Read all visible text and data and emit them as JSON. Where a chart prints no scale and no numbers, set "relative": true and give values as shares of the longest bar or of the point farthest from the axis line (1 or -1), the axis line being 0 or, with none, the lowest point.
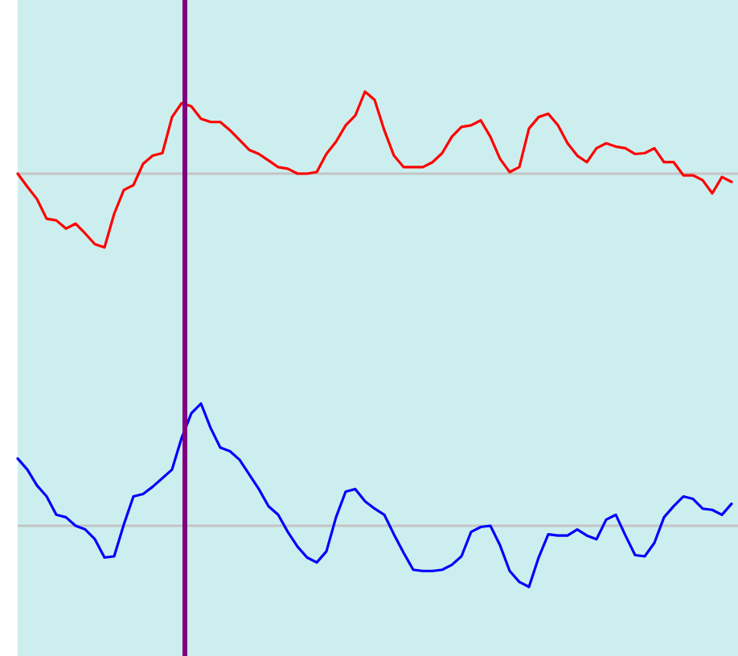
{
  "chart_data": [
    {
      "type": "line",
      "relative": true,
      "categories": [
        null,
        null,
        null,
        null,
        null,
        null,
        null,
        null,
        null,
        null,
        null,
        null,
        null,
        null,
        null,
        null,
        null,
        null,
        null,
        null,
        null,
        null,
        null,
        null,
        null,
        null,
        null,
        null,
        null,
        null,
        null,
        null,
        null,
        null,
        null,
        null,
        null,
        null,
        null,
        null,
        null,
        null,
        null,
        null,
        null,
        null,
        null,
        null,
        null,
        null,
        null,
        null,
        null,
        null,
        null,
        null,
        null,
        null,
        null,
        null,
        null,
        null,
        null,
        null,
        null,
        null,
        null,
        null,
        null,
        null,
        null,
        null,
        null,
        null,
        null
      ],
      "series": [
        {
          "color": "#ff0000",
          "values": [
            0,
            -0.16,
            -0.31,
            -0.55,
            -0.57,
            -0.67,
            -0.61,
            -0.73,
            -0.86,
            -0.9,
            -0.49,
            -0.2,
            -0.14,
            0.12,
            0.22,
            0.25,
            0.69,
            0.86,
            0.82,
            0.67,
            0.63,
            0.63,
            0.53,
            0.41,
            0.29,
            0.24,
            0.16,
            0.08,
            0.06,
            0,
            0,
            0.02,
            0.24,
            0.39,
            0.59,
            0.71,
            1,
            0.9,
            0.53,
            0.22,
            0.08,
            0.08,
            0.08,
            0.14,
            0.25,
            0.45,
            0.57,
            0.59,
            0.65,
            0.45,
            0.18,
            0.02,
            0.08,
            0.55,
            0.69,
            0.73,
            0.59,
            0.37,
            0.22,
            0.14,
            0.31,
            0.37,
            0.33,
            0.31,
            0.24,
            0.25,
            0.31,
            0.14,
            0.14,
            -0.02,
            -0.02,
            -0.08,
            -0.24,
            -0.04,
            -0.1
          ]
        }
      ]
    },
    {
      "type": "line",
      "relative": true,
      "categories": [
        null,
        null,
        null,
        null,
        null,
        null,
        null,
        null,
        null,
        null,
        null,
        null,
        null,
        null,
        null,
        null,
        null,
        null,
        null,
        null,
        null,
        null,
        null,
        null,
        null,
        null,
        null,
        null,
        null,
        null,
        null,
        null,
        null,
        null,
        null,
        null,
        null,
        null,
        null,
        null,
        null,
        null,
        null,
        null,
        null,
        null,
        null,
        null,
        null,
        null,
        null,
        null,
        null,
        null,
        null,
        null,
        null,
        null,
        null,
        null,
        null,
        null,
        null,
        null,
        null,
        null,
        null,
        null,
        null,
        null,
        null,
        null,
        null,
        null,
        null
      ],
      "series": [
        {
          "color": "#0000ff",
          "values": [
            0.55,
            0.46,
            0.33,
            0.24,
            0.09,
            0.07,
            0,
            -0.03,
            -0.11,
            -0.26,
            -0.25,
            0.01,
            0.24,
            0.26,
            0.32,
            0.39,
            0.46,
            0.72,
            0.92,
            1,
            0.8,
            0.64,
            0.61,
            0.54,
            0.42,
            0.3,
            0.16,
            0.09,
            -0.05,
            -0.17,
            -0.26,
            -0.3,
            -0.21,
            0.07,
            0.28,
            0.3,
            0.2,
            0.14,
            0.09,
            -0.07,
            -0.22,
            -0.36,
            -0.37,
            -0.37,
            -0.36,
            -0.32,
            -0.25,
            -0.05,
            -0.01,
            0,
            -0.16,
            -0.37,
            -0.46,
            -0.5,
            -0.26,
            -0.07,
            -0.08,
            -0.08,
            -0.03,
            -0.08,
            -0.11,
            0.05,
            0.09,
            -0.08,
            -0.24,
            -0.25,
            -0.14,
            0.07,
            0.16,
            0.24,
            0.22,
            0.14,
            0.13,
            0.09,
            0.18
          ]
        }
      ]
    }
  ]
}
